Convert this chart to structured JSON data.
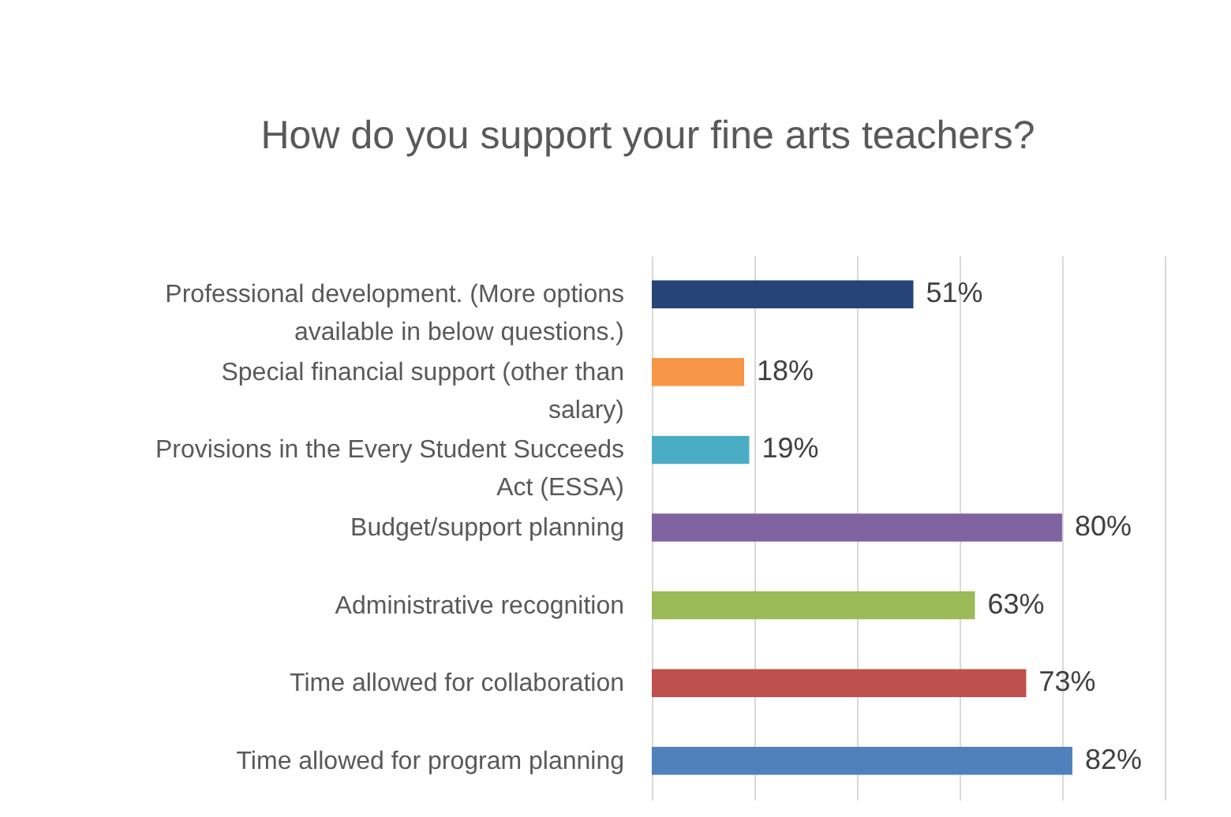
{
  "chart_data": {
    "type": "bar",
    "orientation": "horizontal",
    "title": "How do you support your fine arts teachers?",
    "categories": [
      "Professional development. (More options available in below questions.)",
      "Special financial support (other than salary)",
      "Provisions in the Every Student Succeeds Act (ESSA)",
      "Budget/support planning",
      "Administrative recognition",
      "Time allowed for collaboration",
      "Time allowed for program planning"
    ],
    "values": [
      51,
      18,
      19,
      80,
      63,
      73,
      82
    ],
    "colors": [
      "#264478",
      "#f79646",
      "#4bacc6",
      "#8064a2",
      "#9bbb59",
      "#c0504d",
      "#4f81bd"
    ],
    "value_labels": [
      "51%",
      "18%",
      "19%",
      "80%",
      "63%",
      "73%",
      "82%"
    ],
    "xlim": [
      0,
      100
    ],
    "xticks": [
      {
        "value": 0,
        "label": null
      },
      {
        "value": 20,
        "label": null
      },
      {
        "value": 40,
        "label": null
      },
      {
        "value": 60,
        "label": null
      },
      {
        "value": 80,
        "label": null
      },
      {
        "value": 100,
        "label": null
      }
    ],
    "grid": "x",
    "tick_labels": "y"
  }
}
